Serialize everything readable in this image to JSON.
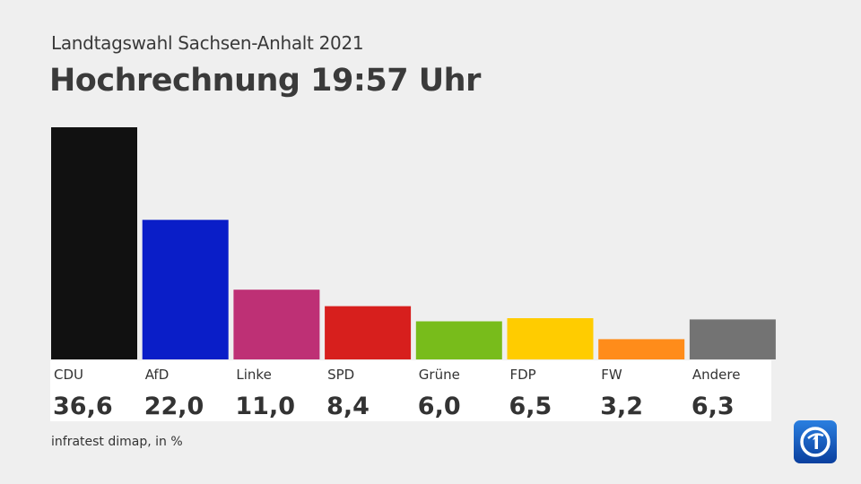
{
  "header": {
    "subtitle": "Landtagswahl Sachsen-Anhalt 2021",
    "title": "Hochrechnung 19:57 Uhr"
  },
  "footer": {
    "source": "infratest dimap, in %"
  },
  "logo": {
    "icon": "ard-das-erste-logo-icon"
  },
  "chart_data": {
    "type": "bar",
    "title": "Hochrechnung 19:57 Uhr",
    "subtitle": "Landtagswahl Sachsen-Anhalt 2021",
    "categories": [
      "CDU",
      "AfD",
      "Linke",
      "SPD",
      "Grüne",
      "FDP",
      "FW",
      "Andere"
    ],
    "values": [
      36.6,
      22.0,
      11.0,
      8.4,
      6.0,
      6.5,
      3.2,
      6.3
    ],
    "value_labels": [
      "36,6",
      "22,0",
      "11,0",
      "8,4",
      "6,0",
      "6,5",
      "3,2",
      "6,3"
    ],
    "colors": [
      "#111111",
      "#0a1ec8",
      "#be3075",
      "#d71f1d",
      "#78bc1b",
      "#ffcc00",
      "#ff8c1a",
      "#737373"
    ],
    "xlabel": "",
    "ylabel": "",
    "ylim": [
      0,
      36.6
    ],
    "grid": false,
    "legend": "none",
    "unit_note": "infratest dimap, in %"
  }
}
